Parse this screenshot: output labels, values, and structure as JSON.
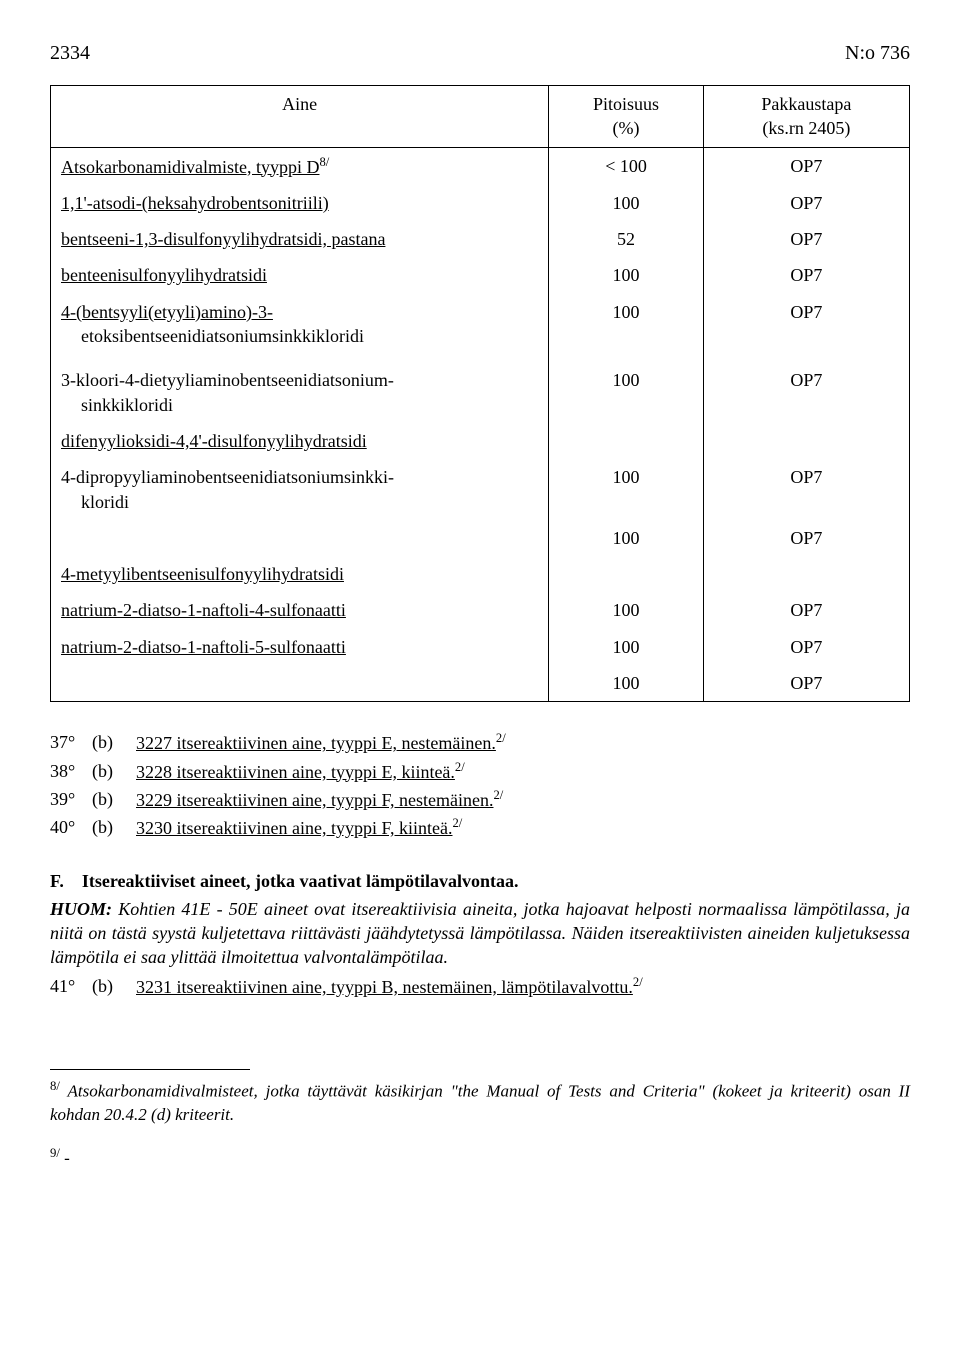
{
  "header": {
    "page_num": "2334",
    "doc_ref": "N:o 736"
  },
  "table": {
    "headers": {
      "aine": "Aine",
      "pitoisuus_label": "Pitoisuus",
      "pitoisuus_unit": "(%)",
      "pakkaustapa_label": "Pakkaustapa",
      "pakkaustapa_unit": "(ks.rn 2405)"
    },
    "rows": [
      {
        "aine": "Atsokarbonamidivalmiste, tyyppi D",
        "sup": "8/",
        "underline": true,
        "pito": "< 100",
        "pak": "OP7"
      },
      {
        "aine": "1,1'-atsodi-(heksahydrobentsonitriili)",
        "underline": true,
        "pito": "100",
        "pak": "OP7"
      },
      {
        "aine": "bentseeni-1,3-disulfonyylihydratsidi, pastana",
        "underline": true,
        "pito": "52",
        "pak": "OP7"
      },
      {
        "aine": "benteenisulfonyylihydratsidi",
        "underline": true,
        "pito": "100",
        "pak": "OP7"
      },
      {
        "aine": "4-(bentsyyli(etyyli)amino)-3-",
        "underline": true,
        "aine2": "etoksibentseenidiatsoniumsinkkikloridi",
        "pito": "100",
        "pak": "OP7"
      },
      {
        "aine": "3-kloori-4-dietyyliaminobentseenidiatsonium-",
        "underline": false,
        "aine2": "sinkkikloridi",
        "pito": "100",
        "pak": "OP7",
        "pad_top": true
      },
      {
        "aine": "difenyylioksidi-4,4'-disulfonyylihydratsidi",
        "underline": true,
        "pito": "",
        "pak": ""
      },
      {
        "aine": "4-dipropyyliaminobentseenidiatsoniumsinkki-",
        "underline": false,
        "aine2": "kloridi",
        "pito": "100",
        "pak": "OP7"
      },
      {
        "aine": "",
        "pito": "100",
        "pak": "OP7",
        "continuation": true
      },
      {
        "aine": "4-metyylibentseenisulfonyylihydratsidi",
        "underline": true,
        "pito": "",
        "pak": ""
      },
      {
        "aine": "natrium-2-diatso-1-naftoli-4-sulfonaatti",
        "underline": true,
        "pito": "100",
        "pak": "OP7"
      },
      {
        "aine": "natrium-2-diatso-1-naftoli-5-sulfonaatti",
        "underline": true,
        "pito": "100",
        "pak": "OP7"
      },
      {
        "aine": "",
        "pito": "100",
        "pak": "OP7"
      }
    ]
  },
  "list": [
    {
      "num": "37°",
      "b": "(b)",
      "text": "3227 itsereaktiivinen aine, tyyppi E, nestemäinen.",
      "sup": "2/"
    },
    {
      "num": "38°",
      "b": "(b)",
      "text": "3228 itsereaktiivinen aine, tyyppi E, kiinteä.",
      "sup": "2/"
    },
    {
      "num": "39°",
      "b": "(b)",
      "text": "3229 itsereaktiivinen aine, tyyppi F, nestemäinen.",
      "sup": "2/"
    },
    {
      "num": "40°",
      "b": "(b)",
      "text": "3230 itsereaktiivinen aine, tyyppi F, kiinteä.",
      "sup": "2/"
    }
  ],
  "section_f": {
    "heading_prefix": "F.",
    "heading": "Itsereaktiiviset aineet, jotka vaativat lämpötilavalvontaa.",
    "huom_label": "HUOM:",
    "huom_text": "Kohtien 41E - 50E aineet ovat itsereaktiivisia aineita, jotka hajoavat helposti normaalissa lämpötilassa, ja niitä on tästä syystä kuljetettava riittävästi jäähdytetyssä lämpötilassa. Näiden itsereaktiivisten aineiden kuljetuksessa lämpötila ei saa ylittää ilmoitettua valvontalämpötilaa.",
    "item": {
      "num": "41°",
      "b": "(b)",
      "text": "3231 itsereaktiivinen aine, tyyppi B, nestemäinen, lämpötilavalvottu.",
      "sup": "2/"
    }
  },
  "footnotes": {
    "f8_mark": "8/",
    "f8_text": "Atsokarbonamidivalmisteet, jotka täyttävät käsikirjan \"the Manual of Tests and Criteria\" (kokeet ja kriteerit) osan II kohdan 20.4.2 (d) kriteerit.",
    "f9_mark": "9/",
    "f9_text": "-"
  }
}
